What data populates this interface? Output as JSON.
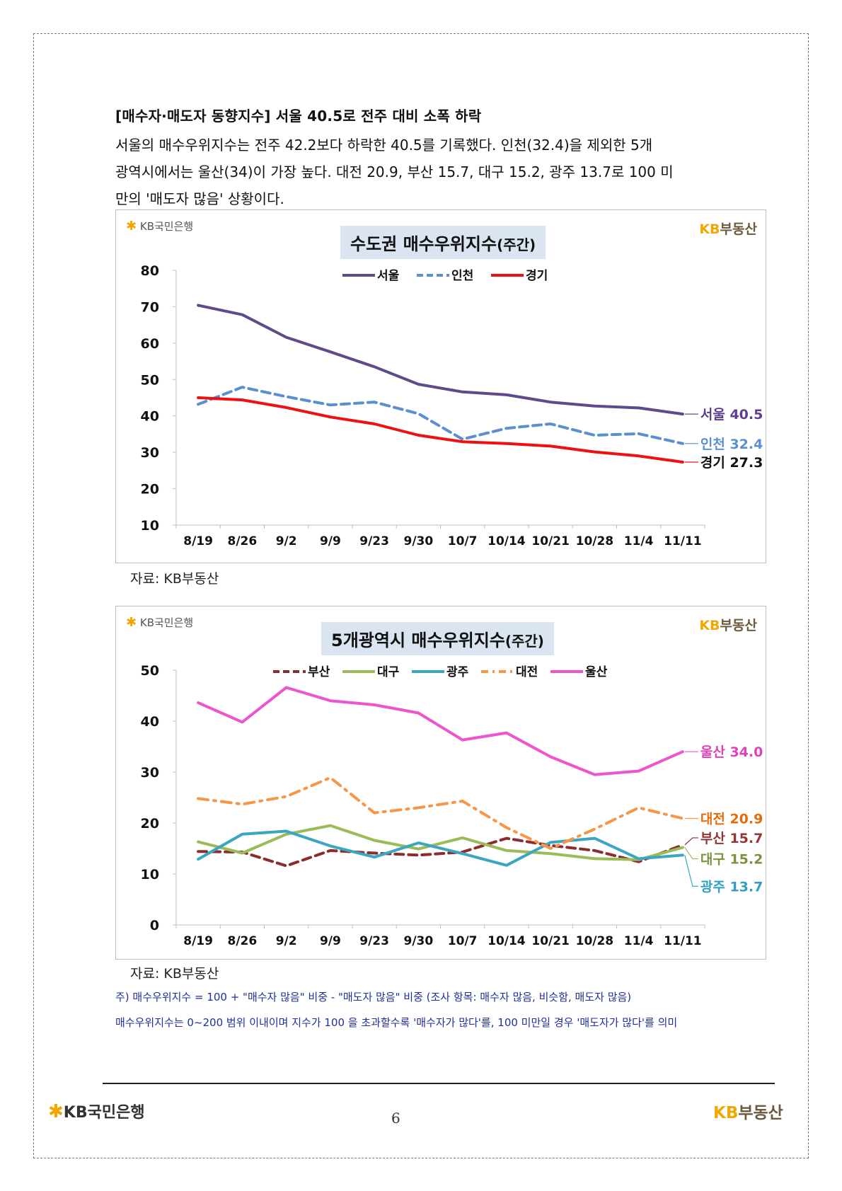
{
  "heading": "[매수자·매도자 동향지수] 서울 40.5로 전주 대비 소폭 하락",
  "paragraph": {
    "line1": "서울의 매수우위지수는 전주 42.2보다 하락한 40.5를 기록했다. 인천(32.4)을 제외한 5개",
    "line2": "광역시에서는 울산(34)이 가장 높다. 대전 20.9, 부산 15.7, 대구 15.2, 광주 13.7로 100 미",
    "line3": "만의 '매도자 많음' 상황이다."
  },
  "logos": {
    "bank": "KB국민은행",
    "realestate_kb": "KB",
    "realestate_name": "부동산"
  },
  "source_label": "자료: KB부동산",
  "notes": {
    "line1": "주) 매수우위지수 = 100 + \"매수자 많음\" 비중 - \"매도자 많음\" 비중  (조사 항목: 매수자 많음, 비슷함, 매도자 많음)",
    "line2": "매수우위지수는 0~200 범위 이내이며 지수가 100 을 초과할수록 '매수자가 많다'를, 100 미만일 경우 '매도자가 많다'를 의미"
  },
  "page_number": "6",
  "chart_data": [
    {
      "type": "line",
      "title": "수도권 매수우위지수",
      "title_suffix": "(주간)",
      "categories": [
        "8/19",
        "8/26",
        "9/2",
        "9/9",
        "9/23",
        "9/30",
        "10/7",
        "10/14",
        "10/21",
        "10/28",
        "11/4",
        "11/11"
      ],
      "ylim": [
        10,
        80
      ],
      "yticks": [
        10,
        20,
        30,
        40,
        50,
        60,
        70,
        80
      ],
      "grid": false,
      "legend": "top",
      "series": [
        {
          "name": "서울",
          "color": "#5f4b8b",
          "dash": "solid",
          "values": [
            70.4,
            67.8,
            61.6,
            57.6,
            53.5,
            48.7,
            46.6,
            45.8,
            43.8,
            42.7,
            42.2,
            40.5
          ],
          "end_label": "서울 40.5",
          "label_color": "#5f3d8f"
        },
        {
          "name": "인천",
          "color": "#5b8fd0",
          "dash": "dashed",
          "values": [
            43.2,
            47.9,
            45.3,
            43.0,
            43.8,
            40.6,
            33.6,
            36.6,
            37.8,
            34.7,
            35.1,
            32.4
          ],
          "end_label": "인천 32.4",
          "label_color": "#5b8fd0"
        },
        {
          "name": "경기",
          "color": "#ee1111",
          "dash": "solid",
          "values": [
            45.0,
            44.4,
            42.3,
            39.7,
            37.8,
            34.7,
            32.9,
            32.4,
            31.7,
            30.1,
            29.0,
            27.3
          ],
          "end_label": "경기 27.3",
          "label_color": "#111111"
        }
      ]
    },
    {
      "type": "line",
      "title": "5개광역시 매수우위지수",
      "title_suffix": "(주간)",
      "categories": [
        "8/19",
        "8/26",
        "9/2",
        "9/9",
        "9/23",
        "9/30",
        "10/7",
        "10/14",
        "10/21",
        "10/28",
        "11/4",
        "11/11"
      ],
      "ylim": [
        0,
        50
      ],
      "yticks": [
        0,
        10,
        20,
        30,
        40,
        50
      ],
      "grid": false,
      "legend": "top",
      "series": [
        {
          "name": "부산",
          "color": "#8b2d2d",
          "dash": "dashed",
          "values": [
            14.4,
            14.3,
            11.6,
            14.6,
            14.1,
            13.7,
            14.3,
            17.0,
            15.6,
            14.6,
            12.4,
            15.7
          ],
          "end_label": "부산 15.7",
          "label_color": "#943634"
        },
        {
          "name": "대구",
          "color": "#9bbb59",
          "dash": "solid",
          "values": [
            16.3,
            14.1,
            17.8,
            19.5,
            16.6,
            14.9,
            17.1,
            14.6,
            14.0,
            13.0,
            12.8,
            15.2
          ],
          "end_label": "대구 15.2",
          "label_color": "#77933c"
        },
        {
          "name": "광주",
          "color": "#3ba6c2",
          "dash": "solid",
          "values": [
            12.9,
            17.8,
            18.4,
            15.5,
            13.3,
            16.1,
            14.0,
            11.7,
            16.2,
            17.0,
            13.0,
            13.7
          ],
          "end_label": "광주 13.7",
          "label_color": "#31a0c0"
        },
        {
          "name": "대전",
          "color": "#f79646",
          "dash": "dashdot",
          "values": [
            24.8,
            23.7,
            25.2,
            28.9,
            22.0,
            23.0,
            24.3,
            19.1,
            15.0,
            18.8,
            23.0,
            20.9
          ],
          "end_label": "대전 20.9",
          "label_color": "#e46c0a"
        },
        {
          "name": "울산",
          "color": "#ee55cc",
          "dash": "solid",
          "values": [
            43.6,
            39.8,
            46.6,
            44.0,
            43.2,
            41.6,
            36.3,
            37.7,
            33.0,
            29.5,
            30.2,
            34.0
          ],
          "end_label": "울산 34.0",
          "label_color": "#e040b8"
        }
      ]
    }
  ]
}
